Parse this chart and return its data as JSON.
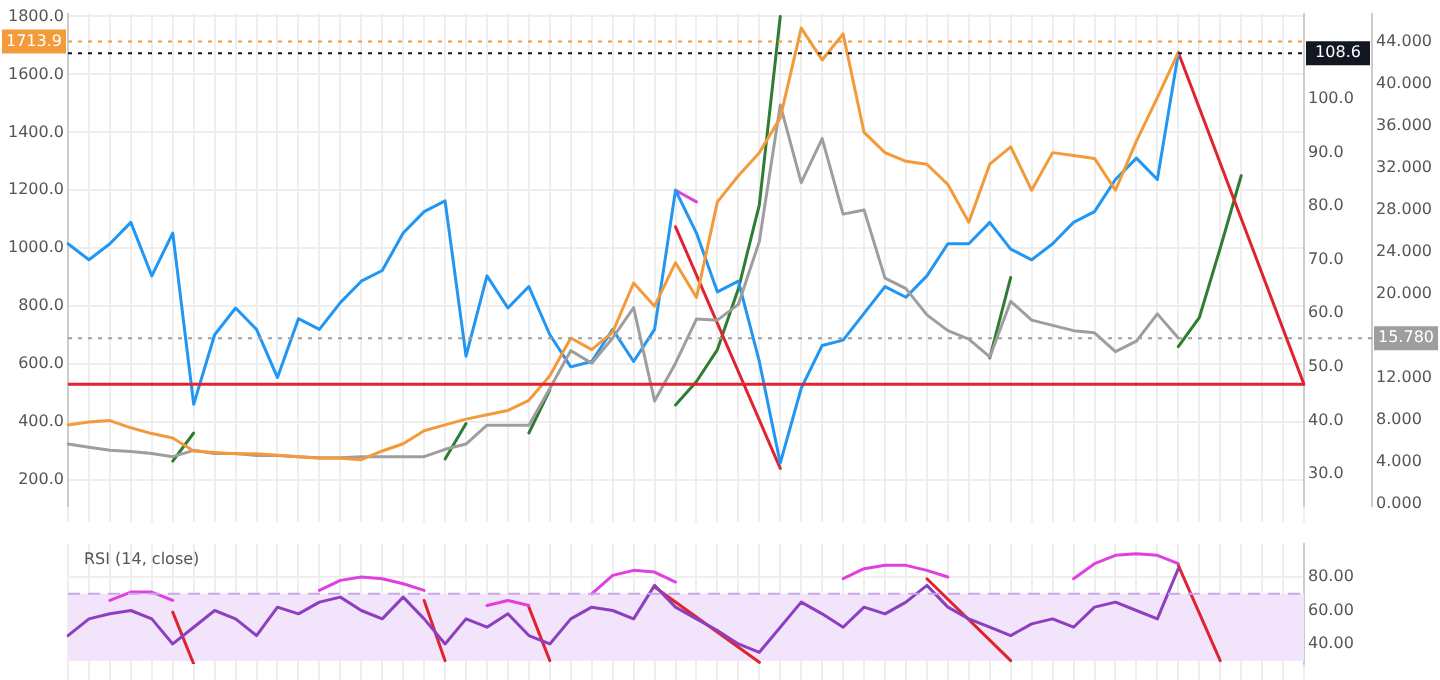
{
  "chart_data": [
    {
      "type": "line",
      "categories": [
        null,
        null,
        null,
        null,
        null,
        null,
        null,
        null,
        null,
        null,
        null,
        null,
        null,
        null,
        null,
        null,
        null,
        null,
        null,
        null,
        null,
        null,
        null,
        null,
        null,
        null,
        null,
        null,
        null,
        null,
        null,
        null,
        null,
        null,
        null,
        null,
        null,
        null,
        null,
        null,
        null,
        null,
        null,
        null,
        null,
        null,
        null,
        null,
        null,
        null,
        null,
        null,
        null,
        null,
        null,
        null,
        null,
        null,
        null,
        null
      ],
      "series": [
        {
          "color": "#f39a3a",
          "axis": "y",
          "values": [
            390,
            400,
            405,
            380,
            360,
            345,
            300,
            295,
            290,
            290,
            285,
            280,
            275,
            275,
            270,
            300,
            325,
            370,
            390,
            410,
            425,
            440,
            475,
            560,
            690,
            650,
            710,
            880,
            800,
            950,
            830,
            1160,
            1250,
            1330,
            1450,
            1760,
            1650,
            1740,
            1400,
            1330,
            1300,
            1290,
            1220,
            1090,
            1290,
            1350,
            1200,
            1330,
            1320,
            1310,
            1200,
            1370,
            1520,
            1676,
            null,
            null,
            null,
            null,
            null,
            null
          ]
        },
        {
          "color": "#9e9e9e",
          "axis": "y3",
          "values": [
            5.7,
            5.4,
            5.1,
            5.0,
            4.8,
            4.5,
            5.1,
            4.8,
            4.8,
            4.6,
            4.6,
            4.5,
            4.4,
            4.4,
            4.5,
            4.5,
            4.5,
            4.5,
            5.2,
            5.7,
            7.5,
            7.5,
            7.5,
            11,
            14.6,
            13.4,
            15.8,
            18.7,
            9.8,
            13.4,
            17.6,
            17.5,
            19,
            25,
            38,
            30.6,
            34.8,
            27.6,
            28,
            21.5,
            20.5,
            18,
            16.5,
            15.7,
            14,
            19.3,
            17.5,
            17,
            16.5,
            16.3,
            14.5,
            15.5,
            18.1,
            15.8,
            null,
            null,
            null,
            null,
            null,
            null
          ]
        },
        {
          "color": "#2196f3",
          "axis": "y2",
          "values": [
            73,
            70,
            73,
            77,
            67,
            75,
            43,
            56,
            61,
            57,
            48,
            59,
            57,
            62,
            66,
            68,
            75,
            79,
            81,
            52,
            67,
            61,
            65,
            56,
            50,
            51,
            57,
            51,
            57,
            83,
            75,
            64,
            66,
            51,
            32,
            46,
            54,
            55,
            60,
            65,
            63,
            67,
            73,
            73,
            77,
            72,
            70,
            73,
            77,
            79,
            85,
            89,
            85,
            108.6,
            null,
            null,
            null,
            null,
            null,
            null
          ]
        },
        {
          "type": "line",
          "color": "#e0242f",
          "axis": "y",
          "values": [
            null,
            null,
            null,
            null,
            null,
            null,
            null,
            null,
            null,
            null,
            null,
            null,
            null,
            null,
            null,
            null,
            null,
            null,
            null,
            null,
            null,
            null,
            null,
            null,
            null,
            null,
            null,
            null,
            null,
            1074,
            null,
            null,
            null,
            null,
            240,
            null,
            null,
            null,
            null,
            null,
            null,
            null,
            null,
            null,
            null,
            null,
            null,
            null,
            null,
            null,
            null,
            null,
            null,
            null,
            null,
            null,
            null,
            null,
            null,
            null
          ]
        },
        {
          "type": "line",
          "color": "#e0242f",
          "axis": "y",
          "values": [
            null,
            null,
            null,
            null,
            null,
            null,
            null,
            null,
            null,
            null,
            null,
            null,
            null,
            null,
            null,
            null,
            null,
            null,
            null,
            null,
            null,
            null,
            null,
            null,
            null,
            null,
            null,
            null,
            null,
            null,
            null,
            null,
            null,
            null,
            null,
            null,
            null,
            null,
            null,
            null,
            null,
            null,
            null,
            null,
            null,
            null,
            null,
            null,
            null,
            null,
            null,
            null,
            null,
            1676,
            null,
            null,
            null,
            null,
            null,
            530
          ]
        },
        {
          "type": "line",
          "color": "#e040e0",
          "axis": "y",
          "values": [
            null,
            null,
            null,
            null,
            null,
            null,
            null,
            null,
            null,
            null,
            null,
            null,
            null,
            null,
            null,
            null,
            null,
            null,
            null,
            null,
            null,
            null,
            null,
            null,
            null,
            null,
            null,
            null,
            null,
            1200,
            1160,
            null,
            null,
            null,
            null,
            null,
            null,
            null,
            null,
            null,
            null,
            null,
            null,
            null,
            null,
            null,
            null,
            null,
            null,
            null,
            null,
            null,
            null,
            null,
            null,
            null,
            null,
            null,
            null,
            null
          ]
        },
        {
          "type": "line",
          "color": "#2e7d32",
          "axis": "y",
          "values": [
            null,
            null,
            null,
            null,
            null,
            265,
            362,
            null,
            null,
            null,
            null,
            null,
            null,
            null,
            null,
            null,
            null,
            null,
            null,
            null,
            null,
            null,
            null,
            null,
            null,
            null,
            null,
            null,
            null,
            null,
            null,
            null,
            null,
            null,
            null,
            null,
            null,
            null,
            null,
            null,
            null,
            null,
            null,
            null,
            null,
            null,
            null,
            null,
            null,
            null,
            null,
            null,
            null,
            null,
            null,
            null,
            null,
            null,
            null,
            null
          ]
        },
        {
          "type": "line",
          "color": "#2e7d32",
          "axis": "y",
          "values": [
            null,
            null,
            null,
            null,
            null,
            null,
            null,
            null,
            null,
            null,
            null,
            null,
            null,
            null,
            null,
            null,
            null,
            null,
            272,
            395,
            null,
            null,
            null,
            null,
            null,
            null,
            null,
            null,
            null,
            null,
            null,
            null,
            null,
            null,
            null,
            null,
            null,
            null,
            null,
            null,
            null,
            null,
            null,
            null,
            null,
            null,
            null,
            null,
            null,
            null,
            null,
            null,
            null,
            null,
            null,
            null,
            null,
            null,
            null,
            null
          ]
        },
        {
          "type": "line",
          "color": "#2e7d32",
          "axis": "y",
          "values": [
            null,
            null,
            null,
            null,
            null,
            null,
            null,
            null,
            null,
            null,
            null,
            null,
            null,
            null,
            null,
            null,
            null,
            null,
            null,
            null,
            null,
            null,
            362,
            511,
            null,
            null,
            null,
            null,
            null,
            null,
            null,
            null,
            null,
            null,
            null,
            null,
            null,
            null,
            null,
            null,
            null,
            null,
            null,
            null,
            null,
            null,
            null,
            null,
            null,
            null,
            null,
            null,
            null,
            null,
            null,
            null,
            null,
            null,
            null,
            null
          ]
        },
        {
          "type": "line",
          "color": "#2e7d32",
          "axis": "y",
          "values": [
            null,
            null,
            null,
            null,
            null,
            null,
            null,
            null,
            null,
            null,
            null,
            null,
            null,
            null,
            null,
            null,
            null,
            null,
            null,
            null,
            null,
            null,
            null,
            null,
            null,
            null,
            null,
            null,
            null,
            459,
            540,
            650,
            860,
            1150,
            1800,
            null,
            null,
            null,
            null,
            null,
            null,
            null,
            null,
            null,
            null,
            null,
            null,
            null,
            null,
            null,
            null,
            null,
            null,
            null,
            null,
            null,
            null,
            null,
            null,
            null
          ]
        },
        {
          "type": "line",
          "color": "#2e7d32",
          "axis": "y",
          "values": [
            null,
            null,
            null,
            null,
            null,
            null,
            null,
            null,
            null,
            null,
            null,
            null,
            null,
            null,
            null,
            null,
            null,
            null,
            null,
            null,
            null,
            null,
            null,
            null,
            null,
            null,
            null,
            null,
            null,
            null,
            null,
            null,
            null,
            null,
            null,
            null,
            null,
            null,
            null,
            null,
            null,
            null,
            null,
            null,
            621,
            899,
            null,
            null,
            null,
            null,
            null,
            null,
            null,
            null,
            null,
            null,
            null,
            null,
            null,
            null
          ]
        },
        {
          "type": "line",
          "color": "#2e7d32",
          "axis": "y",
          "values": [
            null,
            null,
            null,
            null,
            null,
            null,
            null,
            null,
            null,
            null,
            null,
            null,
            null,
            null,
            null,
            null,
            null,
            null,
            null,
            null,
            null,
            null,
            null,
            null,
            null,
            null,
            null,
            null,
            null,
            null,
            null,
            null,
            null,
            null,
            null,
            null,
            null,
            null,
            null,
            null,
            null,
            null,
            null,
            null,
            null,
            null,
            null,
            null,
            null,
            null,
            null,
            null,
            null,
            660,
            760,
            1000,
            1250,
            null,
            null,
            null
          ]
        }
      ],
      "ylim": [
        110,
        1810
      ],
      "yticks": [
        {
          "value": 200,
          "label": "200.0"
        },
        {
          "value": 400,
          "label": "400.0"
        },
        {
          "value": 600,
          "label": "600.0"
        },
        {
          "value": 800,
          "label": "800.0"
        },
        {
          "value": 1000,
          "label": "1000.0"
        },
        {
          "value": 1200,
          "label": "1200.0"
        },
        {
          "value": 1400,
          "label": "1400.0"
        },
        {
          "value": 1600,
          "label": "1600.0"
        },
        {
          "value": 1800,
          "label": "1800.0"
        }
      ],
      "y2lim": [
        24,
        116
      ],
      "y2ticks": [
        {
          "value": 30,
          "label": "30.0"
        },
        {
          "value": 40,
          "label": "40.0"
        },
        {
          "value": 50,
          "label": "50.0"
        },
        {
          "value": 60,
          "label": "60.0"
        },
        {
          "value": 70,
          "label": "70.0"
        },
        {
          "value": 80,
          "label": "80.0"
        },
        {
          "value": 90,
          "label": "90.0"
        },
        {
          "value": 100,
          "label": "100.0"
        }
      ],
      "y3lim": [
        -0.2,
        46.7
      ],
      "y3ticks": [
        {
          "value": 0,
          "label": "0.000"
        },
        {
          "value": 4,
          "label": "4.000"
        },
        {
          "value": 8,
          "label": "8.000"
        },
        {
          "value": 12,
          "label": "12.000"
        },
        {
          "value": 20,
          "label": "20.000"
        },
        {
          "value": 24,
          "label": "24.000"
        },
        {
          "value": 28,
          "label": "28.000"
        },
        {
          "value": 32,
          "label": "32.000"
        },
        {
          "value": 36,
          "label": "36.000"
        },
        {
          "value": 40,
          "label": "40.000"
        },
        {
          "value": 44,
          "label": "44.000"
        }
      ],
      "ref_lines": [
        {
          "axis": "y",
          "value": 530,
          "color": "#e0242f",
          "line_style": "solid"
        },
        {
          "axis": "y2",
          "value": 108.6,
          "label": "108.6",
          "color": "#131722",
          "line_style": "dotted"
        },
        {
          "axis": "y",
          "value": 1713.9,
          "label": "1713.9",
          "color": "#f39a3a",
          "line_style": "dotted"
        },
        {
          "axis": "y3",
          "value": 15.78,
          "label": "15.780",
          "color": "#9e9e9e",
          "line_style": "dotted"
        }
      ],
      "grid": true
    },
    {
      "type": "line",
      "title": "RSI (14, close)",
      "categories": [
        null,
        null,
        null,
        null,
        null,
        null,
        null,
        null,
        null,
        null,
        null,
        null,
        null,
        null,
        null,
        null,
        null,
        null,
        null,
        null,
        null,
        null,
        null,
        null,
        null,
        null,
        null,
        null,
        null,
        null,
        null,
        null,
        null,
        null,
        null,
        null,
        null,
        null,
        null,
        null,
        null,
        null,
        null,
        null,
        null,
        null,
        null,
        null,
        null,
        null,
        null,
        null,
        null,
        null,
        null,
        null,
        null,
        null,
        null,
        null
      ],
      "series": [
        {
          "color": "#8e3fbf",
          "values": [
            45,
            55,
            58,
            60,
            55,
            40,
            50,
            60,
            55,
            45,
            62,
            58,
            65,
            68,
            60,
            55,
            68,
            55,
            40,
            55,
            50,
            58,
            45,
            40,
            55,
            62,
            60,
            55,
            75,
            62,
            55,
            48,
            40,
            35,
            50,
            65,
            58,
            50,
            62,
            58,
            65,
            75,
            62,
            55,
            50,
            45,
            52,
            55,
            50,
            62,
            65,
            60,
            55,
            85,
            null,
            null,
            null,
            null,
            null,
            null
          ]
        },
        {
          "type": "line",
          "color": "#e040e0",
          "values": [
            null,
            null,
            66,
            71,
            71,
            66,
            null,
            null,
            null,
            null,
            null,
            null,
            null,
            null,
            null,
            null,
            null,
            null,
            null,
            null,
            null,
            null,
            null,
            null,
            null,
            null,
            null,
            null,
            null,
            null,
            null,
            null,
            null,
            null,
            null,
            null,
            null,
            null,
            null,
            null,
            null,
            null,
            null,
            null,
            null,
            null,
            null,
            null,
            null,
            null,
            null,
            null,
            null,
            null,
            null,
            null,
            null,
            null,
            null,
            null
          ]
        },
        {
          "type": "line",
          "color": "#e040e0",
          "values": [
            null,
            null,
            null,
            null,
            null,
            null,
            null,
            null,
            null,
            null,
            null,
            null,
            72,
            78,
            80,
            79,
            76,
            72,
            null,
            null,
            null,
            null,
            null,
            null,
            null,
            null,
            null,
            null,
            null,
            null,
            null,
            null,
            null,
            null,
            null,
            null,
            null,
            null,
            null,
            null,
            null,
            null,
            null,
            null,
            null,
            null,
            null,
            null,
            null,
            null,
            null,
            null,
            null,
            null,
            null,
            null,
            null,
            null,
            null,
            null
          ]
        },
        {
          "type": "line",
          "color": "#e040e0",
          "values": [
            null,
            null,
            null,
            null,
            null,
            null,
            null,
            null,
            null,
            null,
            null,
            null,
            null,
            null,
            null,
            null,
            null,
            null,
            null,
            null,
            63,
            66,
            63,
            null,
            null,
            null,
            null,
            null,
            null,
            null,
            null,
            null,
            null,
            null,
            null,
            null,
            null,
            null,
            null,
            null,
            null,
            null,
            null,
            null,
            null,
            null,
            null,
            null,
            null,
            null,
            null,
            null,
            null,
            null,
            null,
            null,
            null,
            null,
            null,
            null
          ]
        },
        {
          "type": "line",
          "color": "#e040e0",
          "values": [
            null,
            null,
            null,
            null,
            null,
            null,
            null,
            null,
            null,
            null,
            null,
            null,
            null,
            null,
            null,
            null,
            null,
            null,
            null,
            null,
            null,
            null,
            null,
            null,
            null,
            70,
            81,
            84,
            83,
            77,
            null,
            null,
            null,
            null,
            null,
            null,
            null,
            null,
            null,
            null,
            null,
            null,
            null,
            null,
            null,
            null,
            null,
            null,
            null,
            null,
            null,
            null,
            null,
            null,
            null,
            null,
            null,
            null,
            null,
            null
          ]
        },
        {
          "type": "line",
          "color": "#e040e0",
          "values": [
            null,
            null,
            null,
            null,
            null,
            null,
            null,
            null,
            null,
            null,
            null,
            null,
            null,
            null,
            null,
            null,
            null,
            null,
            null,
            null,
            null,
            null,
            null,
            null,
            null,
            null,
            null,
            null,
            null,
            null,
            null,
            null,
            null,
            null,
            null,
            null,
            null,
            79,
            85,
            87,
            87,
            84,
            80,
            null,
            null,
            null,
            null,
            null,
            null,
            null,
            null,
            null,
            null,
            null,
            null,
            null,
            null,
            null,
            null,
            null
          ]
        },
        {
          "type": "line",
          "color": "#e040e0",
          "values": [
            null,
            null,
            null,
            null,
            null,
            null,
            null,
            null,
            null,
            null,
            null,
            null,
            null,
            null,
            null,
            null,
            null,
            null,
            null,
            null,
            null,
            null,
            null,
            null,
            null,
            null,
            null,
            null,
            null,
            null,
            null,
            null,
            null,
            null,
            null,
            null,
            null,
            null,
            null,
            null,
            null,
            null,
            null,
            null,
            null,
            null,
            null,
            null,
            79,
            88,
            93,
            94,
            93,
            88,
            null,
            null,
            null,
            null,
            null,
            null
          ]
        },
        {
          "type": "line",
          "color": "#e0242f",
          "values": [
            null,
            null,
            null,
            null,
            null,
            59,
            28,
            null,
            null,
            null,
            null,
            null,
            null,
            null,
            null,
            null,
            null,
            null,
            null,
            null,
            null,
            null,
            null,
            null,
            null,
            null,
            null,
            null,
            null,
            null,
            null,
            null,
            null,
            null,
            null,
            null,
            null,
            null,
            null,
            null,
            null,
            null,
            null,
            null,
            null,
            null,
            null,
            null,
            null,
            null,
            null,
            null,
            null,
            null,
            null,
            null,
            null,
            null,
            null,
            null
          ]
        },
        {
          "type": "line",
          "color": "#e0242f",
          "values": [
            null,
            null,
            null,
            null,
            null,
            null,
            null,
            null,
            null,
            null,
            null,
            null,
            null,
            null,
            null,
            null,
            null,
            66,
            30,
            null,
            null,
            null,
            null,
            null,
            null,
            null,
            null,
            null,
            null,
            null,
            null,
            null,
            null,
            null,
            null,
            null,
            null,
            null,
            null,
            null,
            null,
            null,
            null,
            null,
            null,
            null,
            null,
            null,
            null,
            null,
            null,
            null,
            null,
            null,
            null,
            null,
            null,
            null,
            null,
            null
          ]
        },
        {
          "type": "line",
          "color": "#e0242f",
          "values": [
            null,
            null,
            null,
            null,
            null,
            null,
            null,
            null,
            null,
            null,
            null,
            null,
            null,
            null,
            null,
            null,
            null,
            null,
            null,
            null,
            null,
            null,
            62,
            30,
            null,
            null,
            null,
            null,
            null,
            null,
            null,
            null,
            null,
            null,
            null,
            null,
            null,
            null,
            null,
            null,
            null,
            null,
            null,
            null,
            null,
            null,
            null,
            null,
            null,
            null,
            null,
            null,
            null,
            null,
            null,
            null,
            null,
            null,
            null,
            null
          ]
        },
        {
          "type": "line",
          "color": "#e0242f",
          "values": [
            null,
            null,
            null,
            null,
            null,
            null,
            null,
            null,
            null,
            null,
            null,
            null,
            null,
            null,
            null,
            null,
            null,
            null,
            null,
            null,
            null,
            null,
            null,
            null,
            null,
            null,
            null,
            null,
            74,
            null,
            null,
            null,
            null,
            29,
            null,
            null,
            null,
            null,
            null,
            null,
            null,
            null,
            null,
            null,
            null,
            null,
            null,
            null,
            null,
            null,
            null,
            null,
            null,
            null,
            null,
            null,
            null,
            null,
            null,
            null
          ]
        },
        {
          "type": "line",
          "color": "#e0242f",
          "values": [
            null,
            null,
            null,
            null,
            null,
            null,
            null,
            null,
            null,
            null,
            null,
            null,
            null,
            null,
            null,
            null,
            null,
            null,
            null,
            null,
            null,
            null,
            null,
            null,
            null,
            null,
            null,
            null,
            null,
            null,
            null,
            null,
            null,
            null,
            null,
            null,
            null,
            null,
            null,
            null,
            null,
            79,
            null,
            null,
            null,
            30,
            null,
            null,
            null,
            null,
            null,
            null,
            null,
            null,
            null,
            null,
            null,
            null,
            null,
            null
          ]
        },
        {
          "type": "line",
          "color": "#e0242f",
          "values": [
            null,
            null,
            null,
            null,
            null,
            null,
            null,
            null,
            null,
            null,
            null,
            null,
            null,
            null,
            null,
            null,
            null,
            null,
            null,
            null,
            null,
            null,
            null,
            null,
            null,
            null,
            null,
            null,
            null,
            null,
            null,
            null,
            null,
            null,
            null,
            null,
            null,
            null,
            null,
            null,
            null,
            null,
            null,
            null,
            null,
            null,
            null,
            null,
            null,
            null,
            null,
            null,
            null,
            87,
            null,
            30,
            null,
            null,
            null,
            null
          ]
        }
      ],
      "ylim": [
        28,
        100
      ],
      "yticks": [
        {
          "value": 40,
          "label": "40.00"
        },
        {
          "value": 60,
          "label": "60.00"
        },
        {
          "value": 80,
          "label": "80.00"
        }
      ],
      "bands": [
        {
          "axis": "y",
          "from": 30,
          "to": 70,
          "color": "#f1e4fb"
        }
      ],
      "ref_lines": [
        {
          "axis": "y",
          "value": 70,
          "color": "#c9a6e6",
          "line_style": "dashed"
        }
      ],
      "grid": true
    }
  ]
}
